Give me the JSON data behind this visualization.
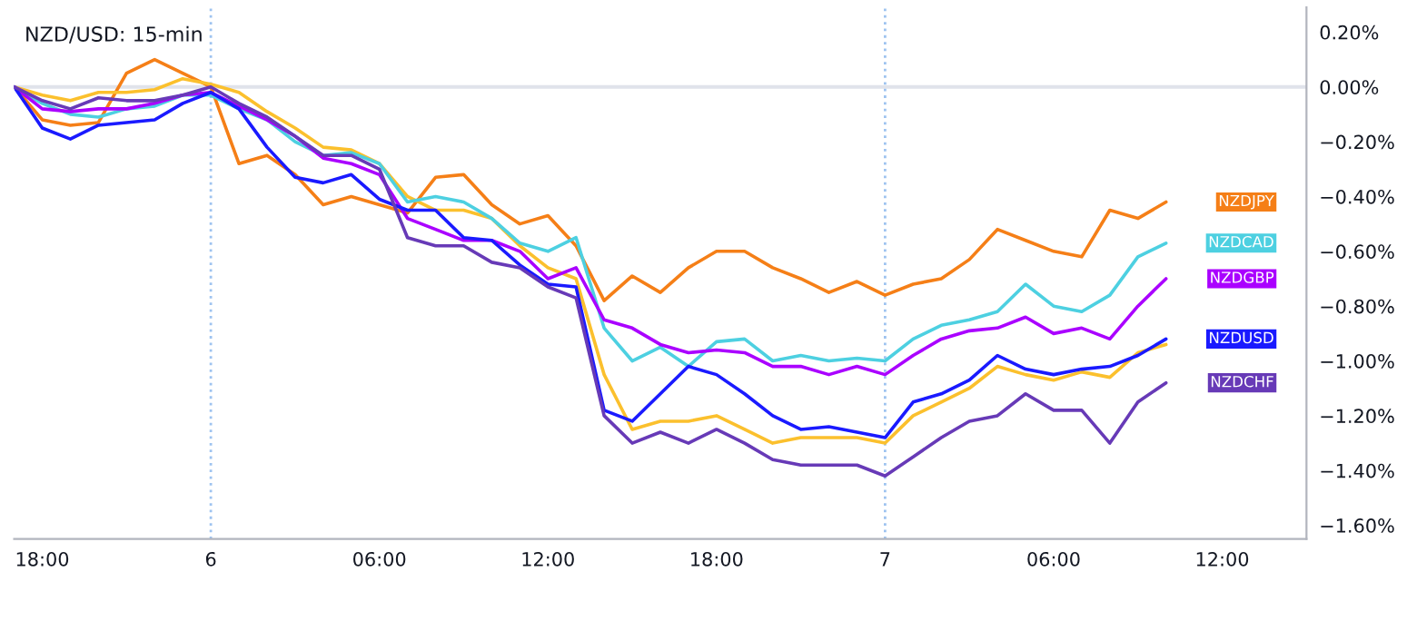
{
  "chart_data": {
    "type": "line",
    "title": "NZD/USD: 15-min",
    "categories": [
      null,
      "18:00",
      null,
      null,
      null,
      null,
      null,
      "6",
      null,
      null,
      null,
      null,
      null,
      "06:00",
      null,
      null,
      null,
      null,
      null,
      "12:00",
      null,
      null,
      null,
      null,
      null,
      "18:00",
      null,
      null,
      null,
      null,
      null,
      "7",
      null,
      null,
      null,
      null,
      null,
      "06:00",
      null,
      null,
      null,
      null,
      null,
      "12:00",
      null,
      null,
      null
    ],
    "series": [
      {
        "name": "NZDJPY",
        "color": "#f57f17",
        "values": [
          0,
          -0.12,
          -0.14,
          -0.13,
          0.05,
          0.1,
          0.05,
          0.0,
          -0.28,
          -0.25,
          -0.32,
          -0.43,
          -0.4,
          -0.43,
          -0.46,
          -0.33,
          -0.32,
          -0.43,
          -0.5,
          -0.47,
          -0.58,
          -0.78,
          -0.69,
          -0.75,
          -0.66,
          -0.6,
          -0.6,
          -0.66,
          -0.7,
          -0.75,
          -0.71,
          -0.76,
          -0.72,
          -0.7,
          -0.63,
          -0.52,
          -0.56,
          -0.6,
          -0.62,
          -0.45,
          -0.48,
          -0.42,
          null,
          null,
          null,
          null,
          null
        ]
      },
      {
        "color": "#fbc02d",
        "values": [
          0,
          -0.03,
          -0.05,
          -0.02,
          -0.02,
          -0.01,
          0.03,
          0.01,
          -0.02,
          -0.09,
          -0.15,
          -0.22,
          -0.23,
          -0.28,
          -0.4,
          -0.45,
          -0.45,
          -0.48,
          -0.58,
          -0.66,
          -0.7,
          -1.05,
          -1.25,
          -1.22,
          -1.22,
          -1.2,
          -1.25,
          -1.3,
          -1.28,
          -1.28,
          -1.28,
          -1.3,
          -1.2,
          -1.15,
          -1.1,
          -1.02,
          -1.05,
          -1.07,
          -1.04,
          -1.06,
          -0.97,
          -0.94,
          null,
          null,
          null,
          null,
          null
        ]
      },
      {
        "name": "NZDCAD",
        "color": "#4dd0e1",
        "values": [
          0,
          -0.06,
          -0.1,
          -0.11,
          -0.08,
          -0.07,
          -0.03,
          -0.03,
          -0.08,
          -0.12,
          -0.2,
          -0.25,
          -0.24,
          -0.28,
          -0.42,
          -0.4,
          -0.42,
          -0.48,
          -0.57,
          -0.6,
          -0.55,
          -0.88,
          -1.0,
          -0.95,
          -1.02,
          -0.93,
          -0.92,
          -1.0,
          -0.98,
          -1.0,
          -0.99,
          -1.0,
          -0.92,
          -0.87,
          -0.85,
          -0.82,
          -0.72,
          -0.8,
          -0.82,
          -0.76,
          -0.62,
          -0.57,
          null,
          null,
          null,
          null,
          null
        ]
      },
      {
        "name": "NZDGBP",
        "color": "#aa00ff",
        "values": [
          0,
          -0.08,
          -0.09,
          -0.08,
          -0.08,
          -0.06,
          -0.03,
          -0.02,
          -0.07,
          -0.12,
          -0.18,
          -0.26,
          -0.28,
          -0.32,
          -0.48,
          -0.52,
          -0.56,
          -0.56,
          -0.6,
          -0.7,
          -0.66,
          -0.85,
          -0.88,
          -0.94,
          -0.97,
          -0.96,
          -0.97,
          -1.02,
          -1.02,
          -1.05,
          -1.02,
          -1.05,
          -0.98,
          -0.92,
          -0.89,
          -0.88,
          -0.84,
          -0.9,
          -0.88,
          -0.92,
          -0.8,
          -0.7,
          null,
          null,
          null,
          null,
          null
        ]
      },
      {
        "name": "NZDUSD",
        "color": "#1a1aff",
        "values": [
          0,
          -0.15,
          -0.19,
          -0.14,
          -0.13,
          -0.12,
          -0.06,
          -0.02,
          -0.08,
          -0.22,
          -0.33,
          -0.35,
          -0.32,
          -0.41,
          -0.45,
          -0.45,
          -0.55,
          -0.56,
          -0.65,
          -0.72,
          -0.73,
          -1.18,
          -1.22,
          -1.12,
          -1.02,
          -1.05,
          -1.12,
          -1.2,
          -1.25,
          -1.24,
          -1.26,
          -1.28,
          -1.15,
          -1.12,
          -1.07,
          -0.98,
          -1.03,
          -1.05,
          -1.03,
          -1.02,
          -0.98,
          -0.92,
          null,
          null,
          null,
          null,
          null
        ]
      },
      {
        "name": "NZDCHF",
        "color": "#673ab7",
        "values": [
          0,
          -0.05,
          -0.08,
          -0.04,
          -0.05,
          -0.05,
          -0.03,
          0.0,
          -0.06,
          -0.11,
          -0.18,
          -0.25,
          -0.25,
          -0.3,
          -0.55,
          -0.58,
          -0.58,
          -0.64,
          -0.66,
          -0.73,
          -0.77,
          -1.2,
          -1.3,
          -1.26,
          -1.3,
          -1.25,
          -1.3,
          -1.36,
          -1.38,
          -1.38,
          -1.38,
          -1.42,
          -1.35,
          -1.28,
          -1.22,
          -1.2,
          -1.12,
          -1.18,
          -1.18,
          -1.3,
          -1.15,
          -1.08,
          null,
          null,
          null,
          null,
          null
        ]
      }
    ],
    "ylim": [
      -1.65,
      0.29
    ],
    "yticks": [
      {
        "value": 0.2,
        "label": "0.20%"
      },
      {
        "value": 0,
        "label": "0.00%"
      },
      {
        "value": -0.2,
        "label": "−0.20%"
      },
      {
        "value": -0.4,
        "label": "−0.40%"
      },
      {
        "value": -0.6,
        "label": "−0.60%"
      },
      {
        "value": -0.8,
        "label": "−0.80%"
      },
      {
        "value": -1.0,
        "label": "−1.00%"
      },
      {
        "value": -1.2,
        "label": "−1.20%"
      },
      {
        "value": -1.4,
        "label": "−1.40%"
      },
      {
        "value": -1.6,
        "label": "−1.60%"
      }
    ],
    "ref_lines": [
      {
        "axis": "y",
        "value": 0,
        "color": "#e0e3eb",
        "line_style": "solid"
      },
      {
        "axis": "x",
        "value": "6",
        "color": "#9ec3f0",
        "line_style": "dotted"
      },
      {
        "axis": "x",
        "value": "7",
        "color": "#9ec3f0",
        "line_style": "dotted"
      }
    ],
    "grid": false,
    "legend": "right",
    "marker": "none",
    "line_style": "solid"
  }
}
